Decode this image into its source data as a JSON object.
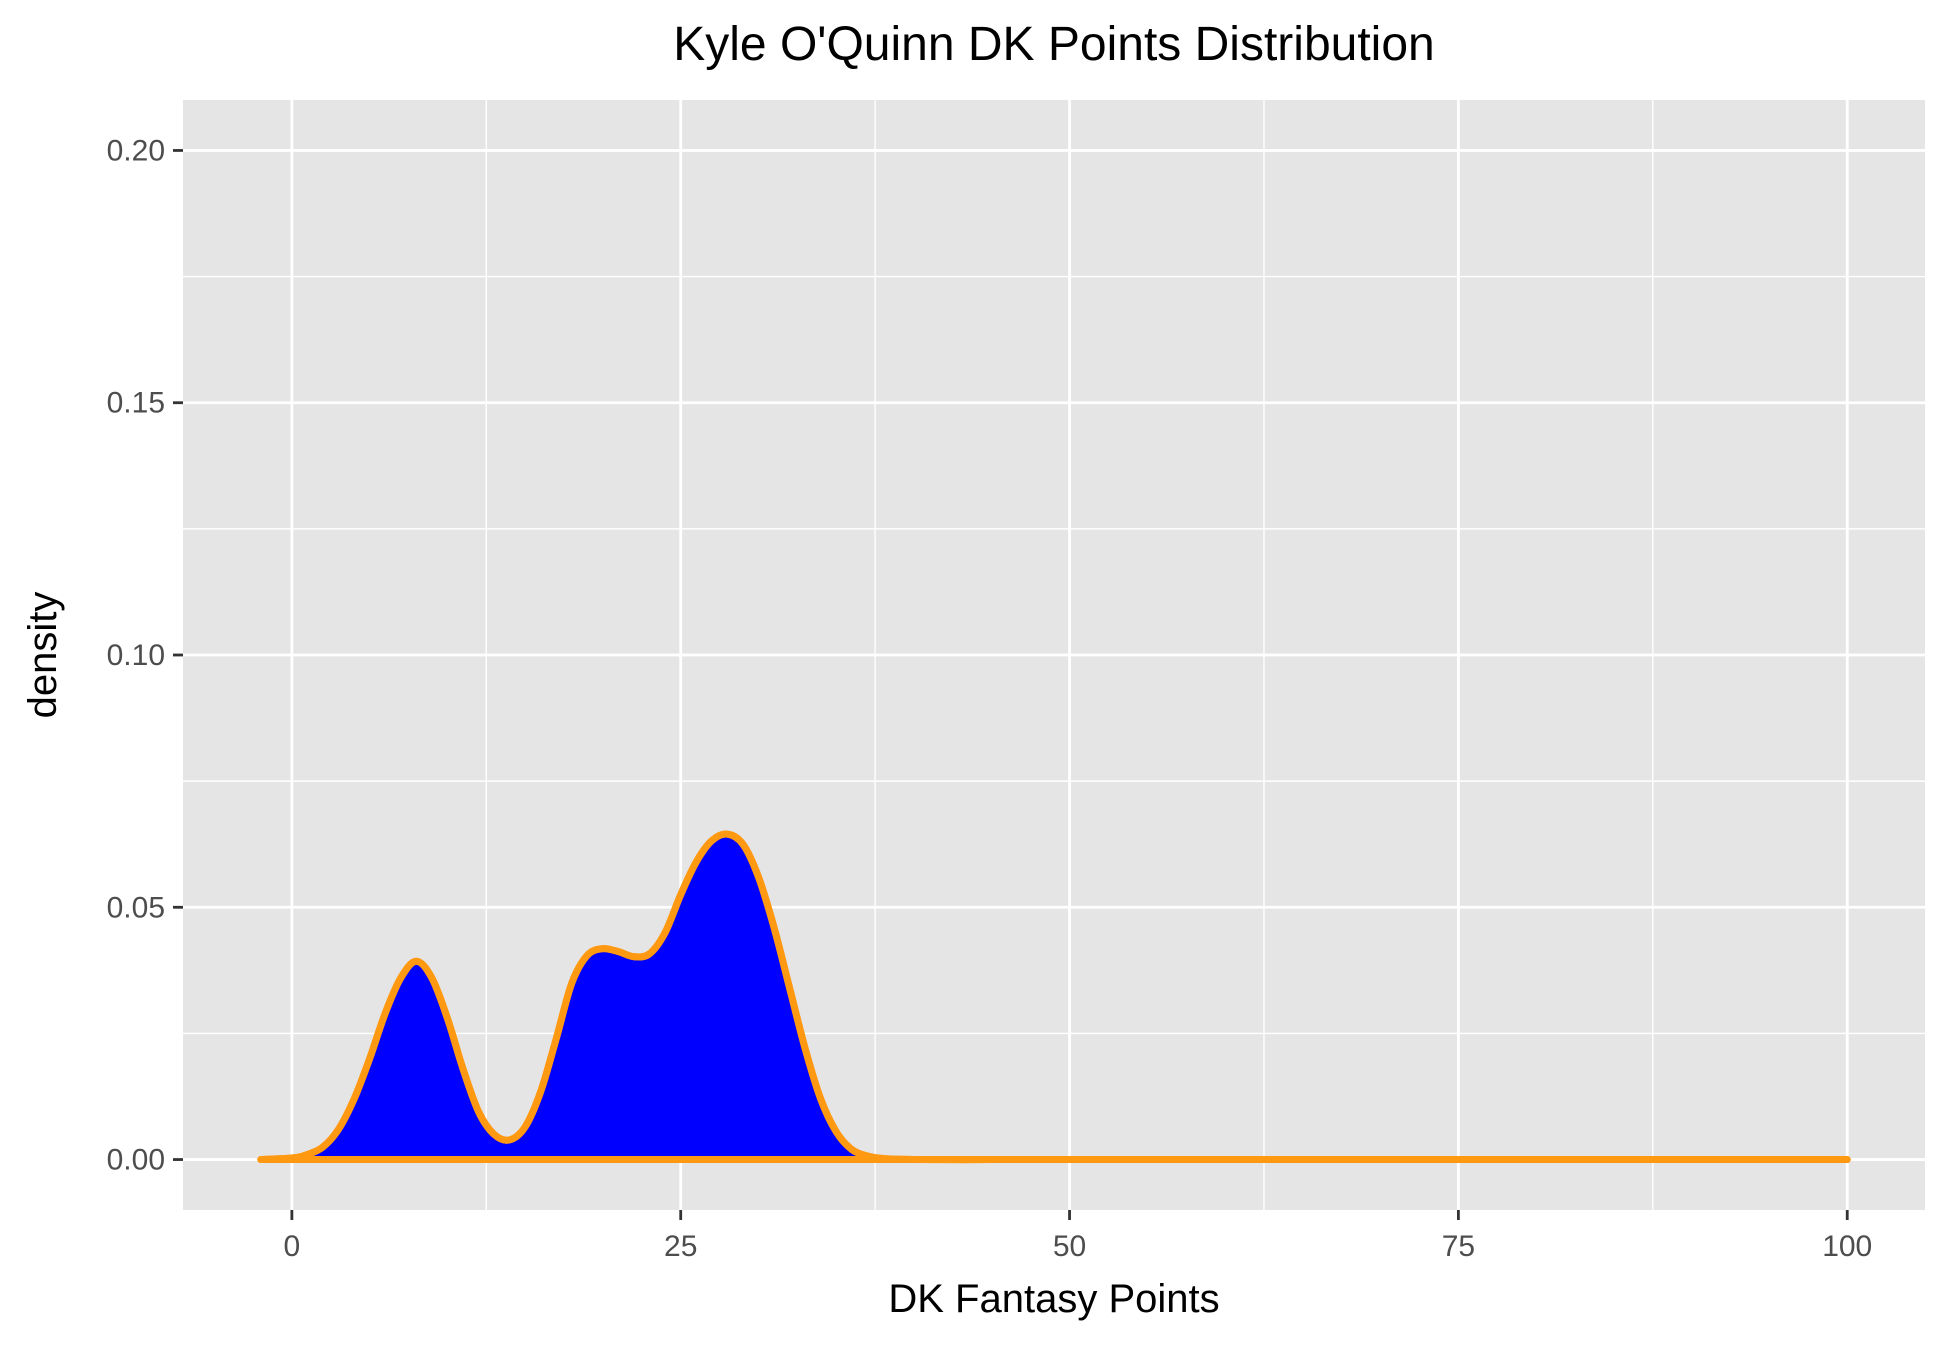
{
  "chart_data": {
    "type": "area",
    "title": "Kyle O'Quinn DK Points Distribution",
    "xlabel": "DK Fantasy Points",
    "ylabel": "density",
    "xlim": [
      -7,
      105
    ],
    "ylim": [
      -0.01,
      0.21
    ],
    "x_ticks": [
      0,
      25,
      50,
      75,
      100
    ],
    "x_tick_labels": [
      "0",
      "25",
      "50",
      "75",
      "100"
    ],
    "y_ticks": [
      0.0,
      0.05,
      0.1,
      0.15,
      0.2
    ],
    "y_tick_labels": [
      "0.00",
      "0.05",
      "0.10",
      "0.15",
      "0.20"
    ],
    "grid": true,
    "legend": "none",
    "colors": {
      "panel_background": "#e5e5e5",
      "grid": "#ffffff",
      "fill": "#0000ff",
      "outline": "#ff9912",
      "tick_label": "#4d4d4d",
      "axis_tick": "#333333"
    },
    "series": [
      {
        "x": [
          -2,
          0,
          1,
          2,
          3,
          4,
          5,
          6,
          7,
          8,
          9,
          10,
          11,
          12,
          13,
          14,
          15,
          16,
          17,
          18,
          19,
          20,
          21,
          22,
          23,
          24,
          25,
          26,
          27,
          28,
          29,
          30,
          31,
          32,
          33,
          34,
          35,
          36,
          37,
          38,
          40,
          45,
          50,
          60,
          70,
          80,
          90,
          100
        ],
        "y": [
          0.0,
          0.0003,
          0.001,
          0.0025,
          0.006,
          0.012,
          0.02,
          0.029,
          0.036,
          0.0393,
          0.036,
          0.028,
          0.018,
          0.0095,
          0.005,
          0.0039,
          0.0065,
          0.0135,
          0.024,
          0.035,
          0.0405,
          0.0418,
          0.0412,
          0.0402,
          0.0408,
          0.045,
          0.0525,
          0.059,
          0.0632,
          0.0645,
          0.0625,
          0.056,
          0.046,
          0.034,
          0.022,
          0.012,
          0.0055,
          0.002,
          0.0007,
          0.0002,
          0.0,
          0.0,
          0.0,
          0.0,
          0.0,
          0.0,
          0.0,
          0.0
        ]
      }
    ]
  }
}
